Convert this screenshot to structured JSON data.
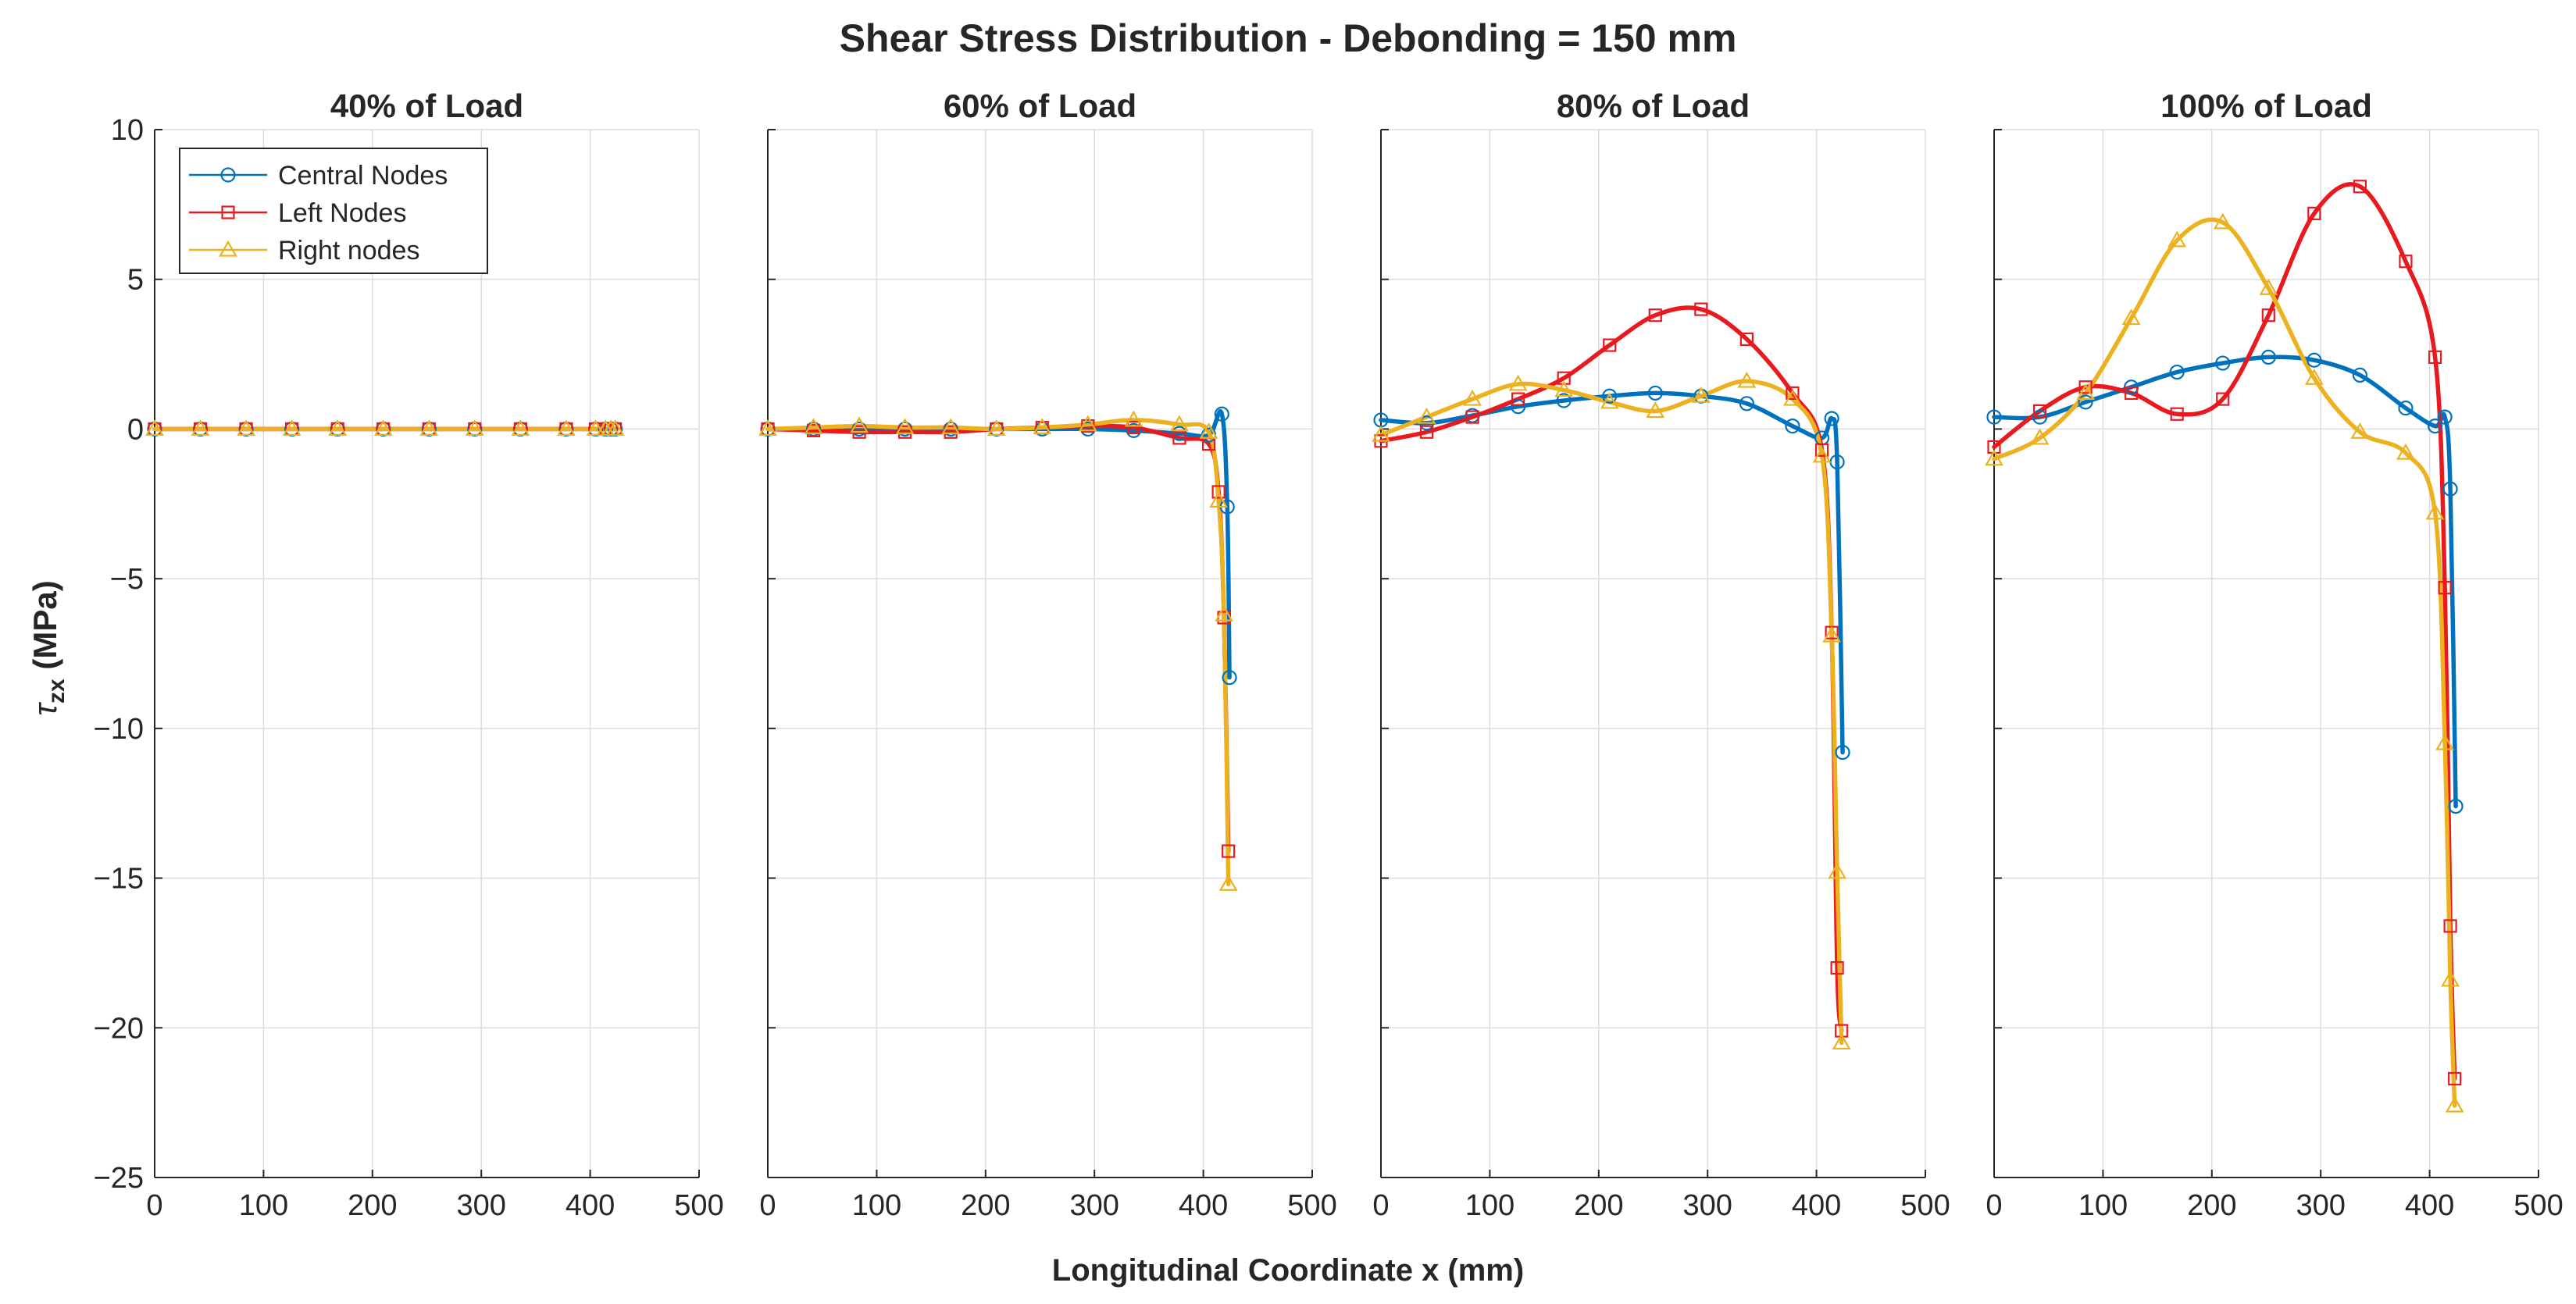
{
  "colors": {
    "central": "#0072BD",
    "left": "#E8191F",
    "right": "#EDB120",
    "grid": "#dcdcdc",
    "axis": "#262626"
  },
  "chart_data": {
    "type": "line",
    "title": "Shear Stress Distribution - Debonding = 150 mm",
    "xlabel": "Longitudinal Coordinate x (mm)",
    "ylabel": "τzx (MPa)",
    "ylabel_main": "τ",
    "ylabel_sub": "zx",
    "ylabel_unit": " (MPa)",
    "xlim": [
      0,
      500
    ],
    "ylim": [
      -25,
      10
    ],
    "xticks": [
      0,
      100,
      200,
      300,
      400,
      500
    ],
    "yticks": [
      10,
      5,
      0,
      -5,
      -10,
      -15,
      -20,
      -25
    ],
    "grid": true,
    "legend": {
      "location": "top-left (first panel)",
      "entries": [
        "Central Nodes",
        "Left Nodes",
        "Right nodes"
      ]
    },
    "panels": [
      {
        "title": "40% of Load",
        "series": [
          {
            "name": "Central Nodes",
            "marker": "circle",
            "x": [
              0,
              42,
              84,
              126,
              168,
              210,
              252,
              294,
              336,
              378,
              405,
              414,
              419,
              423
            ],
            "y": [
              0,
              0,
              0,
              0,
              0,
              0,
              0,
              0,
              0,
              0,
              0,
              0,
              0,
              0
            ]
          },
          {
            "name": "Left Nodes",
            "marker": "square",
            "x": [
              0,
              42,
              84,
              126,
              168,
              210,
              252,
              294,
              336,
              378,
              405,
              414,
              419,
              423
            ],
            "y": [
              0,
              0,
              0,
              0,
              0,
              0,
              0,
              0,
              0,
              0,
              0,
              0,
              0,
              0
            ]
          },
          {
            "name": "Right nodes",
            "marker": "triangle",
            "x": [
              0,
              42,
              84,
              126,
              168,
              210,
              252,
              294,
              336,
              378,
              405,
              414,
              419,
              423
            ],
            "y": [
              0,
              0,
              0,
              0,
              0,
              0,
              0,
              0,
              0,
              0,
              0,
              0,
              0,
              0
            ]
          }
        ]
      },
      {
        "title": "60% of Load",
        "series": [
          {
            "name": "Central Nodes",
            "marker": "circle",
            "x": [
              0,
              42,
              84,
              126,
              168,
              210,
              252,
              294,
              336,
              378,
              405,
              417,
              422,
              424
            ],
            "y": [
              0,
              0,
              0,
              0,
              0,
              0,
              0,
              0,
              -0.05,
              -0.15,
              -0.2,
              0.5,
              -2.6,
              -8.3
            ]
          },
          {
            "name": "Left Nodes",
            "marker": "square",
            "x": [
              0,
              42,
              84,
              126,
              168,
              210,
              252,
              294,
              336,
              378,
              405,
              414,
              419,
              423
            ],
            "y": [
              0,
              -0.05,
              -0.1,
              -0.1,
              -0.1,
              0,
              0.05,
              0.1,
              0.05,
              -0.3,
              -0.5,
              -2.1,
              -6.3,
              -14.1
            ]
          },
          {
            "name": "Right nodes",
            "marker": "triangle",
            "x": [
              0,
              42,
              84,
              126,
              168,
              210,
              252,
              294,
              336,
              378,
              405,
              414,
              419,
              423
            ],
            "y": [
              0,
              0.05,
              0.1,
              0.05,
              0.05,
              0,
              0.05,
              0.15,
              0.3,
              0.15,
              -0.1,
              -2.4,
              -6.2,
              -15.2
            ]
          }
        ]
      },
      {
        "title": "80% of Load",
        "series": [
          {
            "name": "Central Nodes",
            "marker": "circle",
            "x": [
              0,
              42,
              84,
              126,
              168,
              210,
              252,
              294,
              336,
              378,
              405,
              414,
              419,
              424
            ],
            "y": [
              0.3,
              0.2,
              0.45,
              0.75,
              0.95,
              1.1,
              1.2,
              1.1,
              0.85,
              0.1,
              -0.3,
              0.35,
              -1.1,
              -10.8
            ]
          },
          {
            "name": "Left Nodes",
            "marker": "square",
            "x": [
              0,
              42,
              84,
              126,
              168,
              210,
              252,
              294,
              336,
              378,
              405,
              414,
              419,
              423
            ],
            "y": [
              -0.4,
              -0.1,
              0.4,
              1.0,
              1.7,
              2.8,
              3.8,
              4.0,
              3.0,
              1.2,
              -0.7,
              -6.8,
              -18.0,
              -20.1
            ]
          },
          {
            "name": "Right nodes",
            "marker": "triangle",
            "x": [
              0,
              42,
              84,
              126,
              168,
              210,
              252,
              294,
              336,
              378,
              405,
              414,
              419,
              423
            ],
            "y": [
              -0.2,
              0.4,
              1.0,
              1.5,
              1.3,
              0.9,
              0.6,
              1.1,
              1.6,
              1.0,
              -0.9,
              -6.9,
              -14.8,
              -20.5
            ]
          }
        ]
      },
      {
        "title": "100% of Load",
        "series": [
          {
            "name": "Central Nodes",
            "marker": "circle",
            "x": [
              0,
              42,
              84,
              126,
              168,
              210,
              252,
              294,
              336,
              378,
              405,
              414,
              419,
              424
            ],
            "y": [
              0.4,
              0.4,
              0.9,
              1.4,
              1.9,
              2.2,
              2.4,
              2.3,
              1.8,
              0.7,
              0.1,
              0.4,
              -2.0,
              -12.6
            ]
          },
          {
            "name": "Left Nodes",
            "marker": "square",
            "x": [
              0,
              42,
              84,
              126,
              168,
              210,
              252,
              294,
              336,
              378,
              405,
              414,
              419,
              423
            ],
            "y": [
              -0.6,
              0.6,
              1.4,
              1.2,
              0.5,
              1.0,
              3.8,
              7.2,
              8.1,
              5.6,
              2.4,
              -5.3,
              -16.6,
              -21.7
            ]
          },
          {
            "name": "Right nodes",
            "marker": "triangle",
            "x": [
              0,
              42,
              84,
              126,
              168,
              210,
              252,
              294,
              336,
              378,
              405,
              414,
              419,
              423
            ],
            "y": [
              -1.0,
              -0.3,
              1.2,
              3.7,
              6.3,
              6.9,
              4.7,
              1.7,
              -0.1,
              -0.8,
              -2.8,
              -10.5,
              -18.4,
              -22.6
            ]
          }
        ]
      }
    ]
  }
}
